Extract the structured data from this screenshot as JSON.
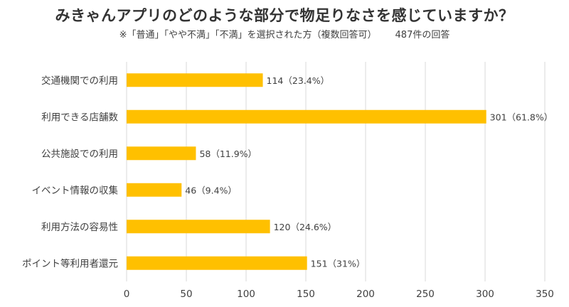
{
  "chart_data": {
    "type": "bar",
    "orientation": "horizontal",
    "title": "みきゃんアプリのどのような部分で物足りなさを感じていますか？",
    "subtitle": "※「普通」「やや不満」「不満」を選択された方（複数回答可）",
    "responses_note": "487件の回答",
    "categories": [
      "交通機関での利用",
      "利用できる店舗数",
      "公共施設での利用",
      "イベント情報の収集",
      "利用方法の容易性",
      "ポイント等利用者還元"
    ],
    "values": [
      114,
      301,
      58,
      46,
      120,
      151
    ],
    "data_labels": [
      "114（23.4%）",
      "301（61.8%）",
      "58（11.9%）",
      "46（9.4%）",
      "120（24.6%）",
      "151（31%）"
    ],
    "xlim": [
      0,
      350
    ],
    "xticks": [
      0,
      50,
      100,
      150,
      200,
      250,
      300,
      350
    ],
    "grid": true,
    "bar_color": "#FFC000",
    "grid_color": "#D9D9D9"
  }
}
